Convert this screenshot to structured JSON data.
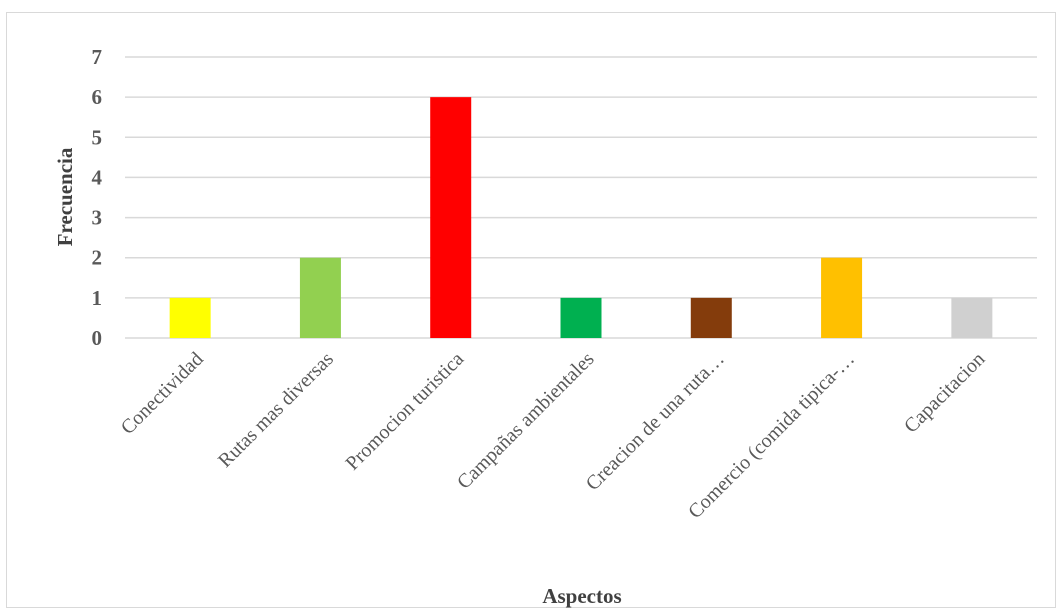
{
  "chart_data": {
    "type": "bar",
    "title": "",
    "xlabel": "Aspectos",
    "ylabel": "Frecuencia",
    "ylim": [
      0,
      7
    ],
    "yticks": [
      0,
      1,
      2,
      3,
      4,
      5,
      6,
      7
    ],
    "grid": true,
    "legend": "none",
    "categories": [
      "Conectividad",
      "Rutas mas diversas",
      "Promocion turistica",
      "Campañas ambientales",
      "Creacion de una ruta…",
      "Comercio (comida tipica-…",
      "Capacitacion"
    ],
    "values": [
      1,
      2,
      6,
      1,
      1,
      2,
      1
    ],
    "colors": [
      "#FFFF00",
      "#92D050",
      "#FF0000",
      "#00B050",
      "#843C0C",
      "#FFC000",
      "#D0D0D0"
    ]
  }
}
